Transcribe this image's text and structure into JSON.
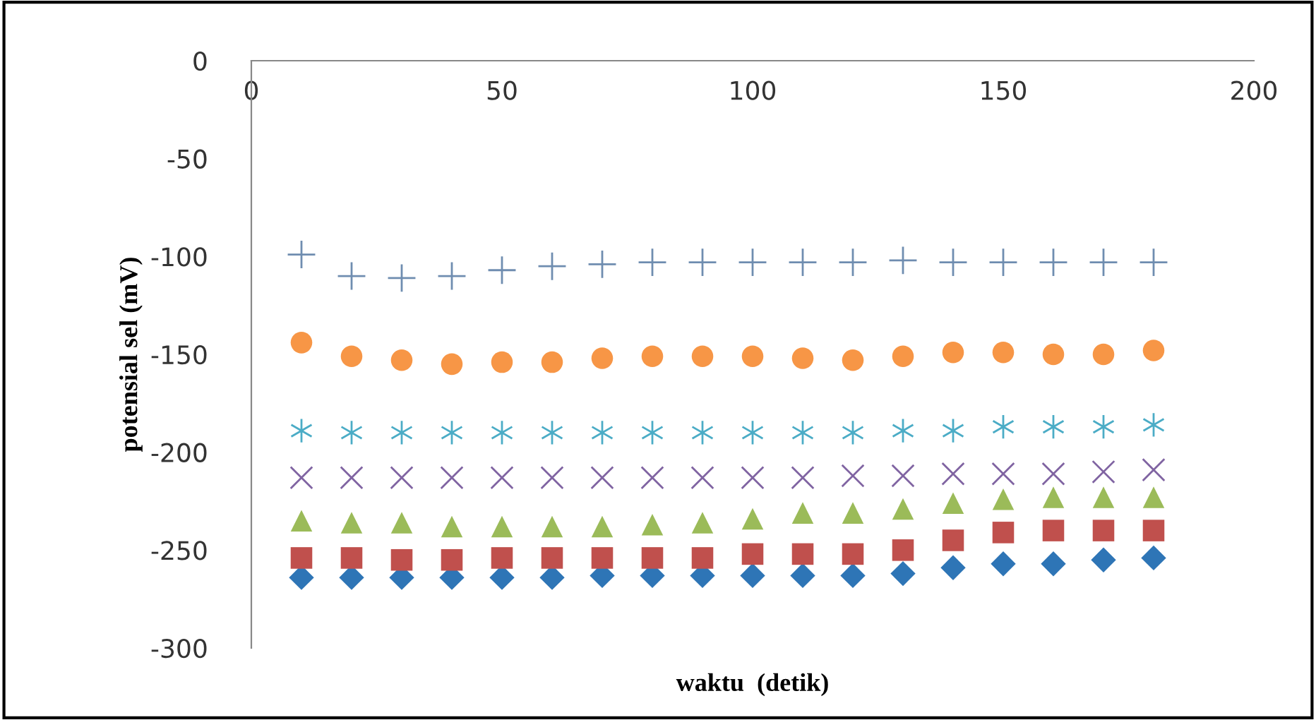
{
  "chart_data": {
    "type": "scatter",
    "xlabel": "waktu  (detik)",
    "ylabel": "potensial sel (mV)",
    "x": [
      10,
      20,
      30,
      40,
      50,
      60,
      70,
      80,
      90,
      100,
      110,
      120,
      130,
      140,
      150,
      160,
      170,
      180
    ],
    "xlim": [
      0,
      200
    ],
    "xticks": [
      0,
      50,
      100,
      150,
      200
    ],
    "ylim": [
      -300,
      0
    ],
    "yticks": [
      -300,
      -250,
      -200,
      -150,
      -100,
      -50,
      0
    ],
    "grid": false,
    "legend": false,
    "series": [
      {
        "color": "#2e75b6",
        "marker": "diamond",
        "values": [
          -264,
          -264,
          -264,
          -264,
          -264,
          -264,
          -263,
          -263,
          -263,
          -263,
          -263,
          -263,
          -262,
          -259,
          -257,
          -257,
          -255,
          -254
        ]
      },
      {
        "color": "#c0504d",
        "marker": "square",
        "values": [
          -254,
          -254,
          -255,
          -255,
          -254,
          -254,
          -254,
          -254,
          -254,
          -252,
          -252,
          -252,
          -250,
          -245,
          -241,
          -240,
          -240,
          -240
        ]
      },
      {
        "color": "#9bbb59",
        "marker": "triangle",
        "values": [
          -235,
          -236,
          -236,
          -238,
          -238,
          -238,
          -238,
          -237,
          -236,
          -234,
          -231,
          -231,
          -229,
          -226,
          -224,
          -223,
          -223,
          -223
        ]
      },
      {
        "color": "#8064a2",
        "marker": "cross",
        "values": [
          -213,
          -213,
          -213,
          -213,
          -213,
          -213,
          -213,
          -213,
          -213,
          -213,
          -213,
          -212,
          -212,
          -211,
          -211,
          -211,
          -210,
          -209
        ]
      },
      {
        "color": "#4bacc6",
        "marker": "cross",
        "values": [
          -189,
          -190,
          -190,
          -190,
          -190,
          -190,
          -190,
          -190,
          -190,
          -190,
          -190,
          -190,
          -189,
          -189,
          -187,
          -187,
          -187,
          -186
        ]
      },
      {
        "color": "#f79646",
        "marker": "circle",
        "values": [
          -144,
          -151,
          -153,
          -155,
          -154,
          -154,
          -152,
          -151,
          -151,
          -151,
          -152,
          -153,
          -151,
          -149,
          -149,
          -150,
          -150,
          -148
        ]
      },
      {
        "color": "#6f8db0",
        "marker": "cross",
        "values": [
          -99,
          -110,
          -111,
          -110,
          -107,
          -105,
          -104,
          -103,
          -103,
          -103,
          -103,
          -103,
          -102,
          -103,
          -103,
          -103,
          -103,
          -103
        ]
      }
    ]
  }
}
